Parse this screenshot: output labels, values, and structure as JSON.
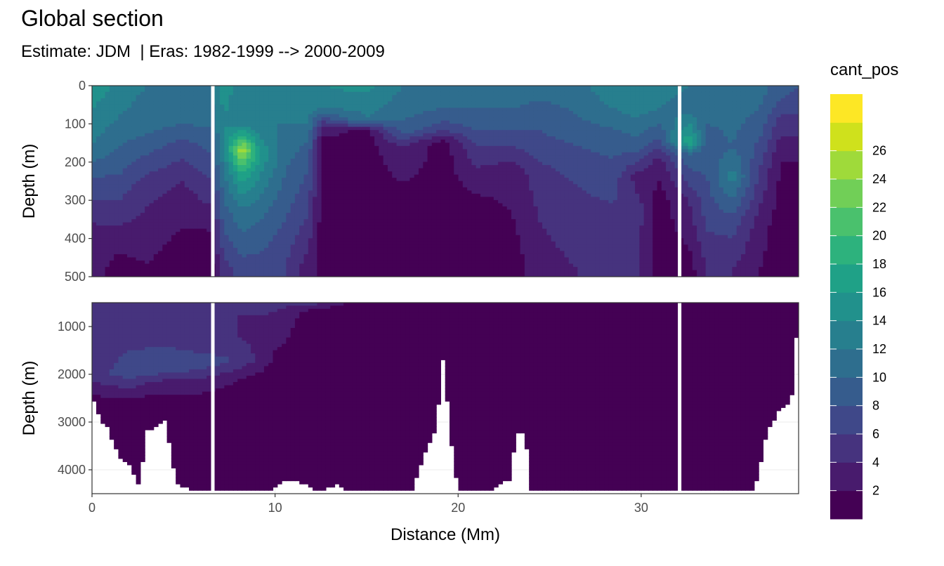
{
  "title": "Global section",
  "subtitle": "Estimate: JDM  | Eras: 1982-1999 --> 2000-2009",
  "chart_data": {
    "type": "heatmap",
    "title": "Global section",
    "subtitle": "Estimate: JDM  | Eras: 1982-1999 --> 2000-2009",
    "xlabel": "Distance (Mm)",
    "ylabel": "Depth (m)",
    "x_range": [
      0,
      38.6
    ],
    "x_ticks": [
      0,
      10,
      20,
      30
    ],
    "gaps_x": [
      6.6,
      32.1
    ],
    "panels": [
      {
        "name": "upper",
        "y_range": [
          0,
          500
        ],
        "y_ticks": [
          0,
          100,
          200,
          300,
          400,
          500
        ]
      },
      {
        "name": "lower",
        "y_range": [
          500,
          4500
        ],
        "y_ticks": [
          1000,
          2000,
          3000,
          4000
        ]
      }
    ],
    "legend": {
      "title": "cant_pos",
      "placement": "right",
      "labels": [
        "2",
        "4",
        "6",
        "8",
        "10",
        "12",
        "14",
        "16",
        "18",
        "20",
        "22",
        "24",
        "26"
      ],
      "breaks": [
        0,
        2,
        4,
        6,
        8,
        10,
        12,
        14,
        16,
        18,
        20,
        22,
        24,
        26,
        28
      ],
      "colors": [
        "#440154",
        "#481b6d",
        "#46337e",
        "#3f4889",
        "#365c8d",
        "#2e6e8e",
        "#277f8e",
        "#21918c",
        "#1fa187",
        "#2db27d",
        "#4ac16d",
        "#71cf57",
        "#9fda3a",
        "#cfe11c",
        "#fde725"
      ]
    },
    "upper_profiles": [
      {
        "x": 0,
        "depths": [
          0,
          60,
          160,
          240,
          360,
          450
        ],
        "values": [
          16,
          14,
          12,
          8,
          4,
          3
        ]
      },
      {
        "x": 1.5,
        "depths": [
          0,
          80,
          200,
          300,
          400,
          480
        ],
        "values": [
          13,
          12,
          9,
          6,
          3,
          1
        ]
      },
      {
        "x": 3,
        "depths": [
          0,
          100,
          180,
          260,
          380,
          470
        ],
        "values": [
          12,
          11,
          8,
          5,
          3,
          2
        ]
      },
      {
        "x": 5,
        "depths": [
          0,
          100,
          160,
          250,
          370,
          450
        ],
        "values": [
          12,
          10,
          7,
          4,
          2,
          1
        ]
      },
      {
        "x": 6.5,
        "depths": [
          0,
          80,
          180,
          280,
          380,
          480
        ],
        "values": [
          12,
          11,
          8,
          5,
          2,
          1
        ]
      },
      {
        "x": 7.2,
        "depths": [
          0,
          80,
          150,
          250,
          380,
          480
        ],
        "values": [
          15,
          14,
          14,
          11,
          8,
          5
        ]
      },
      {
        "x": 8.2,
        "depths": [
          0,
          100,
          170,
          230,
          320,
          480
        ],
        "values": [
          13,
          13,
          26,
          18,
          12,
          7
        ]
      },
      {
        "x": 9.2,
        "depths": [
          0,
          100,
          180,
          260,
          350,
          480
        ],
        "values": [
          13,
          12,
          16,
          13,
          10,
          7
        ]
      },
      {
        "x": 10.5,
        "depths": [
          0,
          100,
          160,
          240,
          360,
          480
        ],
        "values": [
          13,
          12,
          11,
          10,
          8,
          6
        ]
      },
      {
        "x": 11.8,
        "depths": [
          0,
          100,
          150,
          220,
          340,
          480
        ],
        "values": [
          14,
          12,
          10,
          8,
          6,
          3
        ]
      },
      {
        "x": 12.6,
        "depths": [
          0,
          60,
          100,
          150,
          300,
          480
        ],
        "values": [
          14,
          12,
          5,
          1,
          1,
          1
        ]
      },
      {
        "x": 15,
        "depths": [
          0,
          40,
          90,
          120,
          300,
          480
        ],
        "values": [
          15,
          13,
          12,
          1,
          1,
          1
        ]
      },
      {
        "x": 17,
        "depths": [
          0,
          60,
          120,
          160,
          300,
          480
        ],
        "values": [
          12,
          11,
          9,
          4,
          1,
          1
        ]
      },
      {
        "x": 19.2,
        "depths": [
          0,
          60,
          110,
          150,
          300,
          480
        ],
        "values": [
          12,
          10,
          7,
          1,
          1,
          1
        ]
      },
      {
        "x": 21,
        "depths": [
          0,
          60,
          120,
          180,
          320,
          480
        ],
        "values": [
          12,
          10,
          8,
          5,
          1,
          1
        ]
      },
      {
        "x": 23,
        "depths": [
          0,
          60,
          140,
          220,
          340,
          480
        ],
        "values": [
          11,
          10,
          7,
          3,
          2,
          1
        ]
      },
      {
        "x": 24.5,
        "depths": [
          0,
          80,
          160,
          240,
          360,
          480
        ],
        "values": [
          11,
          9,
          7,
          5,
          4,
          3
        ]
      },
      {
        "x": 26.5,
        "depths": [
          0,
          80,
          160,
          260,
          380,
          480
        ],
        "values": [
          11,
          10,
          8,
          6,
          5,
          4
        ]
      },
      {
        "x": 28.5,
        "depths": [
          0,
          60,
          140,
          240,
          380,
          480
        ],
        "values": [
          14,
          12,
          9,
          7,
          5,
          4
        ]
      },
      {
        "x": 29.8,
        "depths": [
          0,
          60,
          160,
          240,
          320,
          480
        ],
        "values": [
          14,
          13,
          9,
          3,
          5,
          4
        ]
      },
      {
        "x": 31,
        "depths": [
          0,
          60,
          140,
          200,
          300,
          480
        ],
        "values": [
          13,
          12,
          8,
          3,
          1,
          1
        ]
      },
      {
        "x": 32.6,
        "depths": [
          0,
          60,
          150,
          180,
          300,
          480
        ],
        "values": [
          12,
          11,
          18,
          10,
          4,
          1
        ]
      },
      {
        "x": 33.6,
        "depths": [
          0,
          60,
          140,
          240,
          380,
          480
        ],
        "values": [
          12,
          11,
          9,
          8,
          6,
          4
        ]
      },
      {
        "x": 35,
        "depths": [
          0,
          60,
          160,
          240,
          360,
          480
        ],
        "values": [
          12,
          11,
          10,
          13,
          7,
          4
        ]
      },
      {
        "x": 36.5,
        "depths": [
          0,
          60,
          140,
          220,
          360,
          480
        ],
        "values": [
          11,
          10,
          8,
          6,
          3,
          2
        ]
      },
      {
        "x": 37.6,
        "depths": [
          0,
          40,
          100,
          200,
          360,
          480
        ],
        "values": [
          9,
          8,
          5,
          2,
          1,
          1
        ]
      },
      {
        "x": 38.6,
        "depths": [
          0,
          40,
          100,
          200,
          360,
          480
        ],
        "values": [
          8,
          7,
          5,
          2,
          1,
          1
        ]
      }
    ],
    "lower_profiles": [
      {
        "x": 0,
        "depths": [
          500,
          1000,
          1500,
          2000,
          2600,
          3200
        ],
        "values": [
          5,
          4,
          5,
          5,
          1,
          1
        ]
      },
      {
        "x": 2,
        "depths": [
          500,
          1000,
          1500,
          2000,
          2600,
          3200
        ],
        "values": [
          5,
          4,
          6,
          7,
          1,
          1
        ]
      },
      {
        "x": 4,
        "depths": [
          500,
          800,
          1400,
          1900,
          2200,
          2600
        ],
        "values": [
          5,
          4,
          6,
          7,
          3,
          1
        ]
      },
      {
        "x": 6,
        "depths": [
          500,
          800,
          1300,
          1800,
          2200,
          2600
        ],
        "values": [
          6,
          4,
          5,
          7,
          3,
          1
        ]
      },
      {
        "x": 8,
        "depths": [
          500,
          800,
          1200,
          1700,
          2100,
          2500
        ],
        "values": [
          6,
          4,
          4,
          6,
          2,
          1
        ]
      },
      {
        "x": 10,
        "depths": [
          500,
          700,
          1000,
          1500,
          2000,
          2400
        ],
        "values": [
          5,
          4,
          3,
          2,
          1,
          1
        ]
      },
      {
        "x": 12,
        "depths": [
          500,
          600,
          700,
          1000,
          1500,
          2000
        ],
        "values": [
          5,
          3,
          1,
          1,
          1,
          1
        ]
      },
      {
        "x": 14,
        "depths": [
          500,
          600,
          800,
          1000,
          1500,
          2000
        ],
        "values": [
          2,
          1,
          1,
          1,
          1,
          1
        ]
      },
      {
        "x": 20,
        "depths": [
          500,
          1000,
          2000,
          3000,
          4000,
          4500
        ],
        "values": [
          1,
          1,
          1,
          1,
          1,
          1
        ]
      },
      {
        "x": 25,
        "depths": [
          500,
          800,
          1000,
          2000,
          3000,
          4500
        ],
        "values": [
          2,
          1,
          1,
          1,
          1,
          1
        ]
      },
      {
        "x": 38.6,
        "depths": [
          500,
          1000,
          2000,
          3000,
          4000,
          4500
        ],
        "values": [
          1,
          1,
          1,
          1,
          1,
          1
        ]
      }
    ],
    "bottom_profile": [
      [
        0,
        2450
      ],
      [
        0.5,
        3000
      ],
      [
        0.9,
        3100
      ],
      [
        1.2,
        3500
      ],
      [
        1.6,
        3800
      ],
      [
        2,
        3850
      ],
      [
        2.6,
        4350
      ],
      [
        3,
        3200
      ],
      [
        4,
        2950
      ],
      [
        4.6,
        4300
      ],
      [
        5,
        4350
      ],
      [
        5.5,
        4450
      ],
      [
        6,
        4400
      ],
      [
        6.5,
        4400
      ],
      [
        7,
        4450
      ],
      [
        10,
        4400
      ],
      [
        10.5,
        4200
      ],
      [
        11.2,
        4250
      ],
      [
        12.5,
        4450
      ],
      [
        13.5,
        4300
      ],
      [
        14,
        4450
      ],
      [
        17.5,
        4450
      ],
      [
        18.3,
        3500
      ],
      [
        18.8,
        3200
      ],
      [
        19.2,
        1600
      ],
      [
        19.6,
        3300
      ],
      [
        20,
        4450
      ],
      [
        22,
        4400
      ],
      [
        22.8,
        4200
      ],
      [
        23.2,
        3200
      ],
      [
        23.7,
        3300
      ],
      [
        24,
        4450
      ],
      [
        34,
        4450
      ],
      [
        36.2,
        4450
      ],
      [
        36.9,
        3200
      ],
      [
        37.6,
        2700
      ],
      [
        38.2,
        2600
      ],
      [
        38.6,
        600
      ]
    ]
  }
}
